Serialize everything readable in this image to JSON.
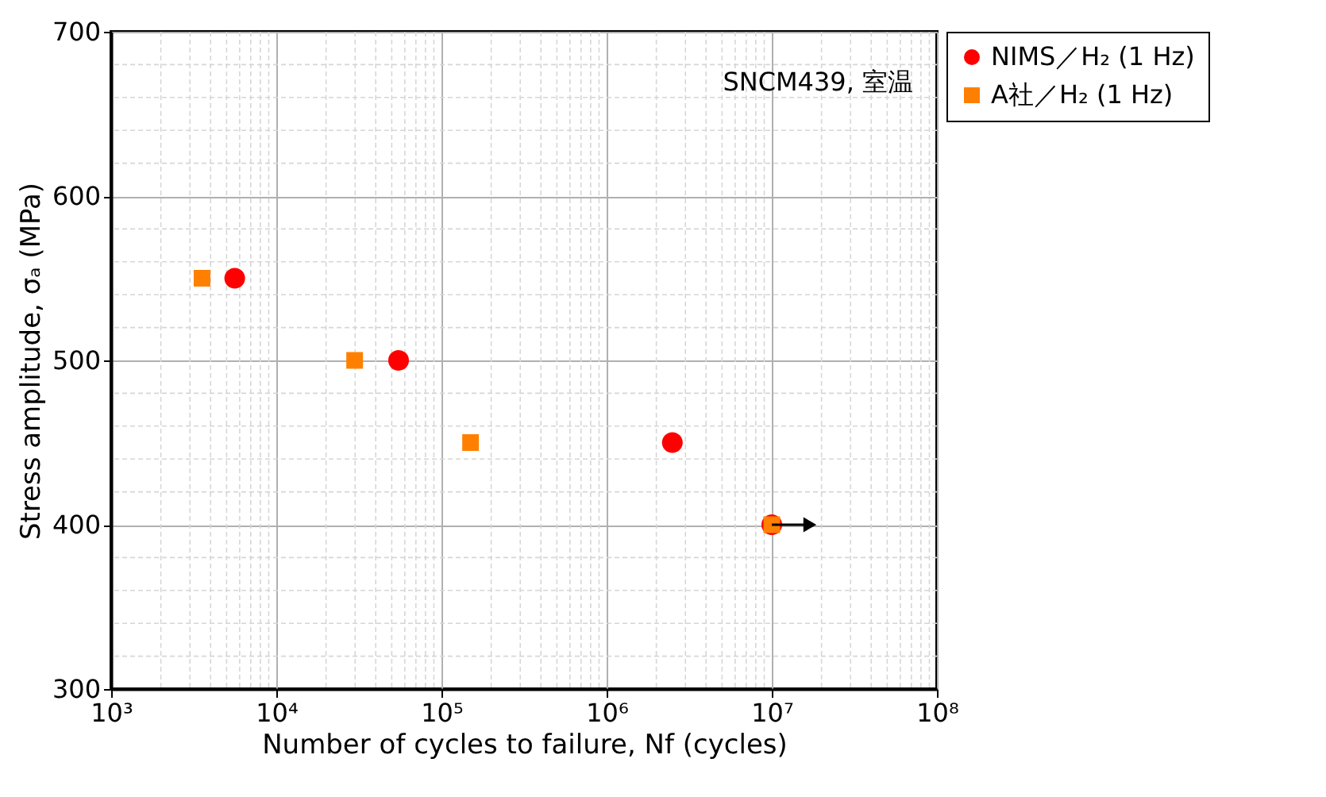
{
  "chart_data": {
    "type": "scatter",
    "xlabel": "Number of cycles to failure, Nf (cycles)",
    "ylabel": "Stress amplitude, σₐ (MPa)",
    "annotations": [
      "SNCM439, 室温"
    ],
    "log": "x",
    "grid": true,
    "legend": "top right",
    "xlim": [
      1000,
      100000000
    ],
    "xticks": [
      {
        "value": 1000,
        "label": "10³"
      },
      {
        "value": 10000,
        "label": "10⁴"
      },
      {
        "value": 100000,
        "label": "10⁵"
      },
      {
        "value": 1000000,
        "label": "10⁶"
      },
      {
        "value": 10000000,
        "label": "10⁷"
      },
      {
        "value": 100000000,
        "label": "10⁸"
      }
    ],
    "ylim": [
      300,
      700
    ],
    "yticks": [
      300,
      400,
      500,
      600,
      700
    ],
    "series": [
      {
        "name": "NIMS／H₂ (1 Hz)",
        "color": "#ff0000",
        "marker": "circle",
        "x": [
          5600,
          55000,
          2500000,
          10000000
        ],
        "values": [
          550,
          500,
          450,
          400
        ]
      },
      {
        "name": "A社／H₂ (1 Hz)",
        "color": "#ff8000",
        "marker": "square",
        "x": [
          3550,
          29800,
          150000,
          10000000
        ],
        "values": [
          550,
          500,
          450,
          400
        ]
      }
    ]
  }
}
